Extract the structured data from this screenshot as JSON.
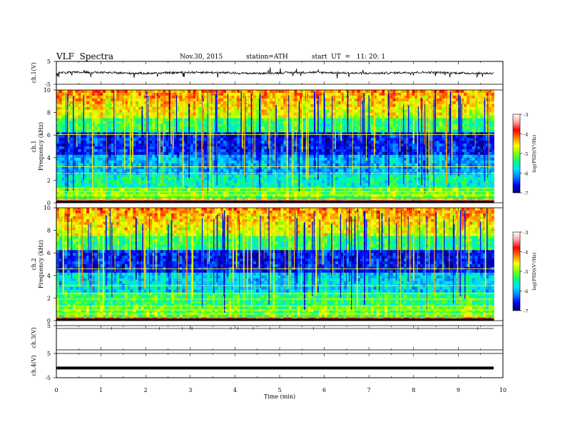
{
  "header": {
    "title": "VLF  Spectra",
    "date": "Nov.30, 2015",
    "station": "station=ATH",
    "start": "start  UT  =   11: 20: 1"
  },
  "chart_data": [
    {
      "type": "line",
      "panel": "ch1-waveform",
      "ylabel": "ch.1(V)",
      "ylim": [
        -5,
        5
      ],
      "yticks": [
        5,
        -5
      ],
      "xlim": [
        0,
        10
      ],
      "description_values": {
        "baseline_V": 0,
        "spike_range_V": [
          -2.5,
          1.5
        ]
      }
    },
    {
      "type": "heatmap",
      "panel": "ch1-spectrogram",
      "ylabel": [
        "ch.1",
        "Frequency  (kHz)"
      ],
      "ylim": [
        0,
        10
      ],
      "yticks": [
        0,
        2,
        4,
        6,
        8,
        10
      ],
      "xlim": [
        0,
        9.8
      ],
      "colorbar": {
        "label": "log(PSD)(V²/Hz)",
        "range": [
          -7,
          -3
        ],
        "ticks": [
          -3,
          -4,
          -5,
          -6,
          -7
        ]
      }
    },
    {
      "type": "heatmap",
      "panel": "ch2-spectrogram",
      "ylabel": [
        "ch.2",
        "Frequency  (kHz)"
      ],
      "ylim": [
        0,
        10
      ],
      "yticks": [
        0,
        2,
        4,
        6,
        8,
        10
      ],
      "xlim": [
        0,
        9.8
      ],
      "colorbar": {
        "label": "log(PSD)(V²/Hz)",
        "range": [
          -7,
          -3
        ],
        "ticks": [
          -3,
          -4,
          -5,
          -6,
          -7
        ]
      }
    },
    {
      "type": "line",
      "panel": "ch3-waveform",
      "ylabel": "ch.3(V)",
      "ylim": [
        -5,
        5
      ],
      "yticks": [
        5
      ],
      "xlim": [
        0,
        10
      ],
      "description_values": {
        "baseline_V": 5
      }
    },
    {
      "type": "line",
      "panel": "ch4-waveform",
      "ylabel": "ch.4(V)",
      "ylim": [
        -5,
        5
      ],
      "yticks": [
        5,
        -5
      ],
      "xlim": [
        0,
        10
      ],
      "description_values": {
        "baseline_V": -1
      }
    }
  ],
  "xaxis": {
    "label": "Time  (min)",
    "ticks": [
      0,
      1,
      2,
      3,
      4,
      5,
      6,
      7,
      8,
      9,
      10
    ]
  },
  "colors": {
    "colormap": [
      "#000066",
      "#0000ff",
      "#0080ff",
      "#00e0ff",
      "#00ff80",
      "#80ff00",
      "#ffff00",
      "#ff8000",
      "#ff0000",
      "#ffa0a0",
      "#ffffff"
    ]
  }
}
